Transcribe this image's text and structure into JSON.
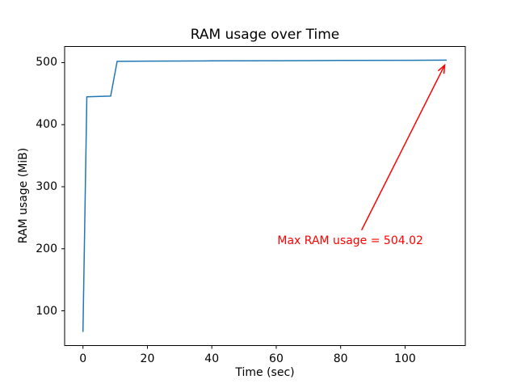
{
  "chart_data": {
    "type": "line",
    "title": "RAM usage over Time",
    "xlabel": "Time (sec)",
    "ylabel": "RAM usage (MiB)",
    "x": [
      0,
      1.2,
      8.6,
      10.6,
      20,
      40,
      60,
      80,
      100,
      112.9
    ],
    "y": [
      66,
      445,
      446,
      502,
      502.4,
      502.8,
      503.1,
      503.4,
      503.7,
      504.02
    ],
    "xticks": [
      0,
      20,
      40,
      60,
      80,
      100
    ],
    "yticks": [
      100,
      200,
      300,
      400,
      500
    ],
    "xlim": [
      -5.7,
      118.7
    ],
    "ylim": [
      44,
      526
    ],
    "grid": false,
    "legend": null,
    "line_color": "#1f77b4",
    "spine_color": "#000000",
    "background_color": "#ffffff",
    "annotation": {
      "text": "Max RAM usage = 504.02",
      "color": "#ff0000",
      "text_center_data_xy": [
        83,
        213
      ],
      "arrow_from_data_xy": [
        86.5,
        230
      ],
      "arrow_to_data_xy": [
        112.3,
        496
      ]
    }
  }
}
